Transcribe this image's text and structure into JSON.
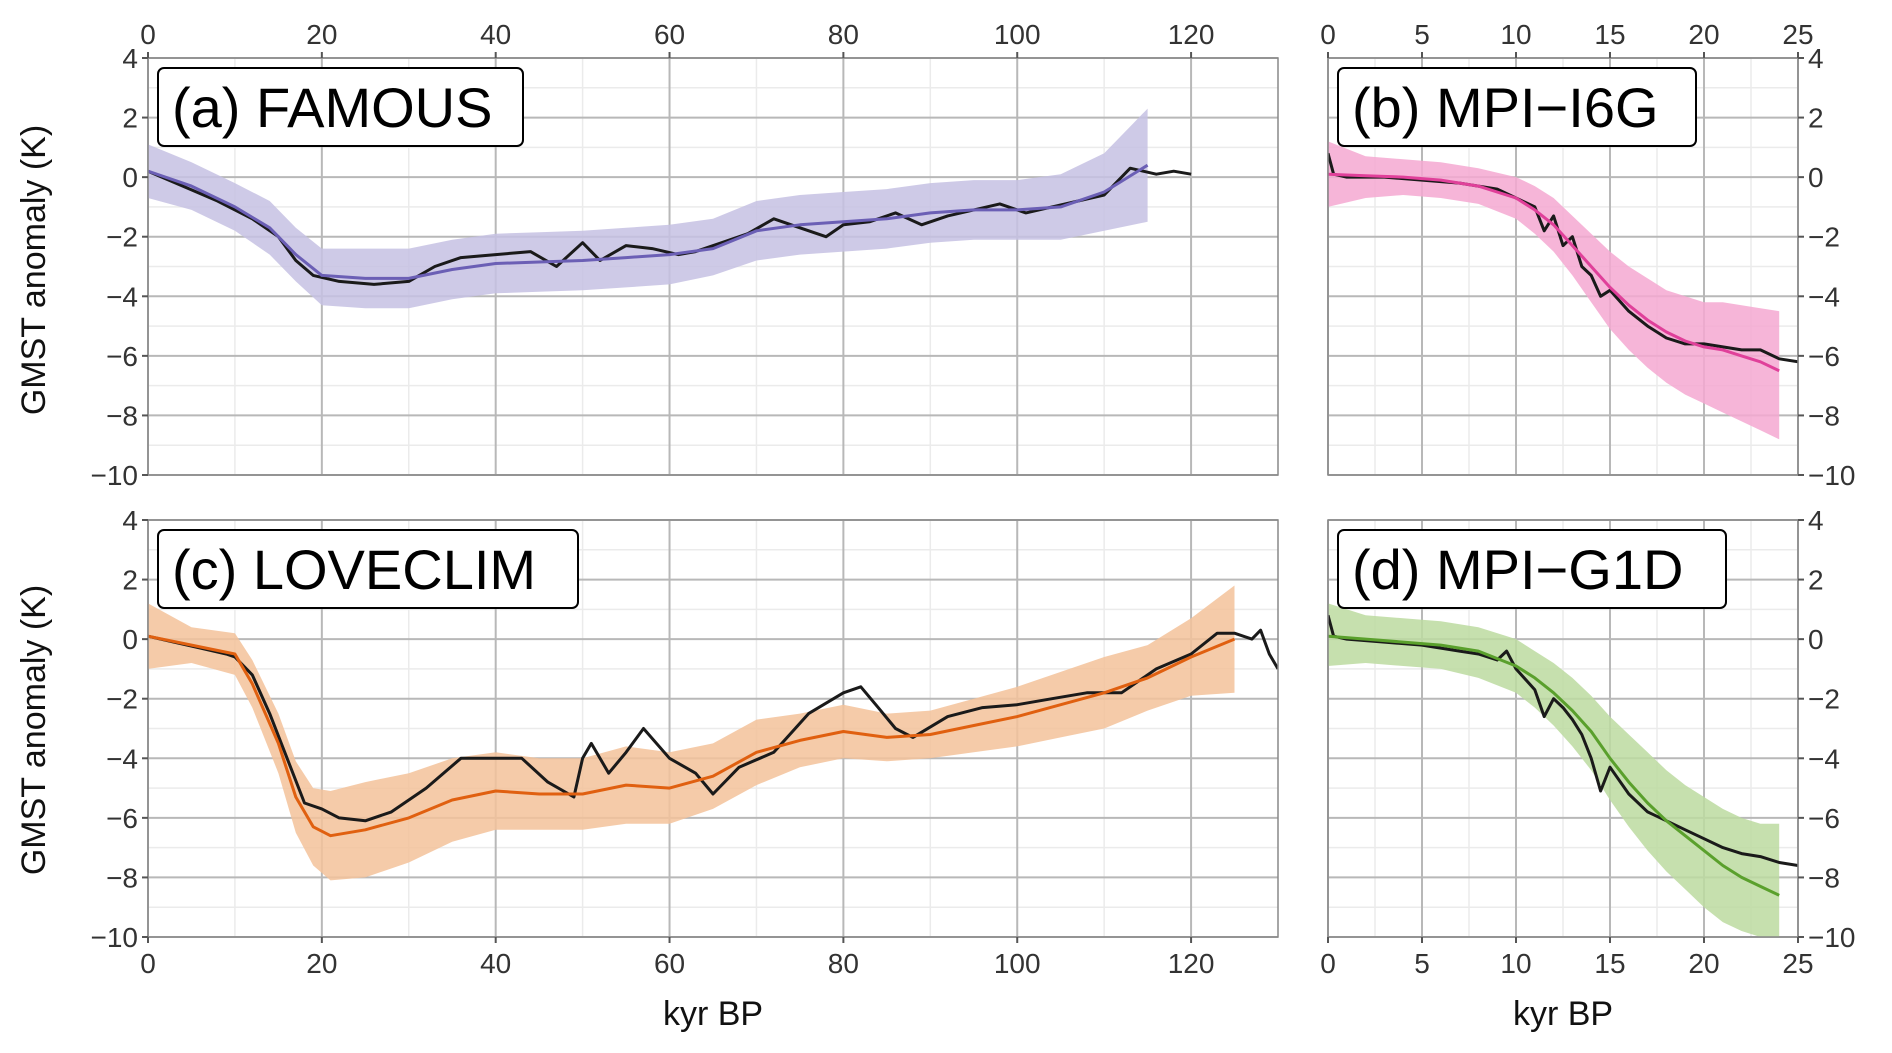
{
  "figure": {
    "ylabel": "GMST anomaly (K)",
    "xlabel": "kyr BP"
  },
  "chart_data": [
    {
      "type": "line",
      "panel": "a",
      "title": "(a) FAMOUS",
      "xlabel": "",
      "ylabel": "GMST anomaly (K)",
      "xlim": [
        0,
        130
      ],
      "ylim": [
        -10,
        4
      ],
      "x_ticks": [
        0,
        20,
        40,
        60,
        80,
        100,
        120
      ],
      "y_ticks": [
        -10,
        -8,
        -6,
        -4,
        -2,
        0,
        2,
        4
      ],
      "x_tick_position": "top",
      "y_tick_position": "left",
      "grid": true,
      "colors": {
        "mean": "#6b5fb5",
        "band": "#c5c1e3",
        "raw": "#1a1a1a"
      },
      "series": [
        {
          "role": "mean",
          "x": [
            0,
            5,
            10,
            14,
            17,
            20,
            25,
            30,
            35,
            40,
            45,
            50,
            55,
            60,
            65,
            70,
            75,
            80,
            85,
            90,
            95,
            100,
            105,
            110,
            115
          ],
          "values": [
            0.2,
            -0.3,
            -1.0,
            -1.7,
            -2.6,
            -3.3,
            -3.4,
            -3.4,
            -3.1,
            -2.9,
            -2.85,
            -2.8,
            -2.7,
            -2.6,
            -2.4,
            -1.8,
            -1.6,
            -1.5,
            -1.4,
            -1.2,
            -1.1,
            -1.1,
            -1.0,
            -0.5,
            0.4
          ]
        },
        {
          "role": "band",
          "x": [
            0,
            5,
            10,
            14,
            17,
            20,
            25,
            30,
            35,
            40,
            45,
            50,
            55,
            60,
            65,
            70,
            75,
            80,
            85,
            90,
            95,
            100,
            105,
            110,
            115
          ],
          "lower": [
            -0.7,
            -1.1,
            -1.8,
            -2.6,
            -3.5,
            -4.3,
            -4.4,
            -4.4,
            -4.1,
            -3.9,
            -3.85,
            -3.8,
            -3.7,
            -3.6,
            -3.3,
            -2.8,
            -2.6,
            -2.5,
            -2.4,
            -2.2,
            -2.1,
            -2.1,
            -2.1,
            -1.8,
            -1.5
          ],
          "upper": [
            1.1,
            0.5,
            -0.2,
            -0.8,
            -1.7,
            -2.4,
            -2.4,
            -2.4,
            -2.1,
            -1.9,
            -1.85,
            -1.8,
            -1.7,
            -1.6,
            -1.4,
            -0.8,
            -0.6,
            -0.5,
            -0.4,
            -0.2,
            -0.1,
            -0.1,
            0.1,
            0.8,
            2.3
          ]
        },
        {
          "role": "raw",
          "x": [
            0,
            4,
            8,
            12,
            15,
            17,
            19,
            22,
            26,
            30,
            33,
            36,
            40,
            44,
            47,
            50,
            52,
            55,
            58,
            61,
            63,
            66,
            69,
            72,
            75,
            78,
            80,
            83,
            86,
            89,
            92,
            95,
            98,
            101,
            104,
            107,
            110,
            113,
            116,
            118,
            120
          ],
          "values": [
            0.2,
            -0.3,
            -0.8,
            -1.4,
            -2.0,
            -2.8,
            -3.3,
            -3.5,
            -3.6,
            -3.5,
            -3.0,
            -2.7,
            -2.6,
            -2.5,
            -3.0,
            -2.2,
            -2.8,
            -2.3,
            -2.4,
            -2.6,
            -2.5,
            -2.2,
            -1.9,
            -1.4,
            -1.7,
            -2.0,
            -1.6,
            -1.5,
            -1.2,
            -1.6,
            -1.3,
            -1.1,
            -0.9,
            -1.2,
            -1.0,
            -0.8,
            -0.6,
            0.3,
            0.1,
            0.2,
            0.1
          ]
        }
      ]
    },
    {
      "type": "line",
      "panel": "b",
      "title": "(b) MPI−I6G",
      "xlabel": "",
      "ylabel": "",
      "xlim": [
        0,
        25
      ],
      "ylim": [
        -10,
        4
      ],
      "x_ticks": [
        0,
        5,
        10,
        15,
        20,
        25
      ],
      "y_ticks": [
        -10,
        -8,
        -6,
        -4,
        -2,
        0,
        2,
        4
      ],
      "x_tick_position": "top",
      "y_tick_position": "right",
      "grid": true,
      "colors": {
        "mean": "#e0409a",
        "band": "#f5a8d1",
        "raw": "#1a1a1a"
      },
      "series": [
        {
          "role": "mean",
          "x": [
            0,
            2,
            4,
            6,
            8,
            10,
            11,
            12,
            13,
            14,
            15,
            16,
            17,
            18,
            19,
            20,
            21,
            22,
            23,
            24
          ],
          "values": [
            0.1,
            0.05,
            0.0,
            -0.1,
            -0.3,
            -0.7,
            -1.1,
            -1.6,
            -2.3,
            -3.0,
            -3.7,
            -4.3,
            -4.8,
            -5.2,
            -5.5,
            -5.7,
            -5.8,
            -6.0,
            -6.2,
            -6.5
          ]
        },
        {
          "role": "band",
          "x": [
            0,
            2,
            4,
            6,
            8,
            10,
            11,
            12,
            13,
            14,
            15,
            16,
            17,
            18,
            19,
            20,
            21,
            22,
            23,
            24
          ],
          "lower": [
            -1.0,
            -0.7,
            -0.6,
            -0.7,
            -0.9,
            -1.4,
            -1.9,
            -2.5,
            -3.3,
            -4.2,
            -5.1,
            -5.8,
            -6.4,
            -6.9,
            -7.3,
            -7.6,
            -7.9,
            -8.2,
            -8.5,
            -8.8
          ],
          "upper": [
            1.2,
            0.7,
            0.6,
            0.5,
            0.3,
            0.0,
            -0.3,
            -0.7,
            -1.3,
            -1.9,
            -2.5,
            -3.0,
            -3.4,
            -3.8,
            -4.0,
            -4.2,
            -4.2,
            -4.3,
            -4.4,
            -4.5
          ]
        },
        {
          "role": "raw",
          "x": [
            0,
            0.3,
            1,
            3,
            5,
            7,
            8,
            9,
            10,
            11,
            11.5,
            12,
            12.5,
            13,
            13.5,
            14,
            14.5,
            15,
            16,
            17,
            18,
            19,
            20,
            21,
            22,
            23,
            24,
            25
          ],
          "values": [
            0.8,
            0.1,
            0.0,
            0.0,
            -0.1,
            -0.2,
            -0.3,
            -0.4,
            -0.7,
            -1.0,
            -1.8,
            -1.3,
            -2.3,
            -2.0,
            -3.0,
            -3.3,
            -4.0,
            -3.8,
            -4.5,
            -5.0,
            -5.4,
            -5.6,
            -5.6,
            -5.7,
            -5.8,
            -5.8,
            -6.1,
            -6.2
          ]
        }
      ]
    },
    {
      "type": "line",
      "panel": "c",
      "title": "(c) LOVECLIM",
      "xlabel": "kyr BP",
      "ylabel": "GMST anomaly (K)",
      "xlim": [
        0,
        130
      ],
      "ylim": [
        -10,
        4
      ],
      "x_ticks": [
        0,
        20,
        40,
        60,
        80,
        100,
        120
      ],
      "y_ticks": [
        -10,
        -8,
        -6,
        -4,
        -2,
        0,
        2,
        4
      ],
      "x_tick_position": "bottom",
      "y_tick_position": "left",
      "grid": true,
      "colors": {
        "mean": "#e06010",
        "band": "#f3c29a",
        "raw": "#1a1a1a"
      },
      "series": [
        {
          "role": "mean",
          "x": [
            0,
            5,
            10,
            12,
            15,
            17,
            19,
            21,
            25,
            30,
            35,
            40,
            45,
            50,
            55,
            60,
            65,
            70,
            75,
            80,
            85,
            90,
            95,
            100,
            105,
            110,
            115,
            120,
            125
          ],
          "values": [
            0.1,
            -0.2,
            -0.5,
            -1.5,
            -3.5,
            -5.3,
            -6.3,
            -6.6,
            -6.4,
            -6.0,
            -5.4,
            -5.1,
            -5.2,
            -5.2,
            -4.9,
            -5.0,
            -4.6,
            -3.8,
            -3.4,
            -3.1,
            -3.3,
            -3.2,
            -2.9,
            -2.6,
            -2.2,
            -1.8,
            -1.3,
            -0.6,
            0.0
          ]
        },
        {
          "role": "band",
          "x": [
            0,
            5,
            10,
            12,
            15,
            17,
            19,
            21,
            25,
            30,
            35,
            40,
            45,
            50,
            55,
            60,
            65,
            70,
            75,
            80,
            85,
            90,
            95,
            100,
            105,
            110,
            115,
            120,
            125
          ],
          "lower": [
            -1.0,
            -0.8,
            -1.2,
            -2.3,
            -4.5,
            -6.5,
            -7.6,
            -8.1,
            -8.0,
            -7.5,
            -6.8,
            -6.4,
            -6.4,
            -6.4,
            -6.2,
            -6.2,
            -5.7,
            -4.9,
            -4.3,
            -4.0,
            -4.1,
            -4.0,
            -3.8,
            -3.6,
            -3.3,
            -3.0,
            -2.4,
            -1.9,
            -1.8
          ]
        },
        {
          "role": "raw",
          "x": [
            0,
            3,
            6,
            9,
            10,
            12,
            14,
            16,
            18,
            20,
            22,
            25,
            28,
            32,
            36,
            39,
            43,
            46,
            49,
            50,
            51,
            53,
            55,
            57,
            60,
            63,
            65,
            68,
            72,
            76,
            80,
            82,
            84,
            86,
            88,
            92,
            96,
            100,
            104,
            108,
            112,
            116,
            120,
            123,
            125,
            127,
            128,
            129,
            130
          ],
          "values": [
            0.1,
            -0.1,
            -0.3,
            -0.5,
            -0.6,
            -1.2,
            -2.5,
            -4.0,
            -5.5,
            -5.7,
            -6.0,
            -6.1,
            -5.8,
            -5.0,
            -4.0,
            -4.0,
            -4.0,
            -4.8,
            -5.3,
            -4.0,
            -3.5,
            -4.5,
            -3.8,
            -3.0,
            -4.0,
            -4.5,
            -5.2,
            -4.3,
            -3.8,
            -2.5,
            -1.8,
            -1.6,
            -2.3,
            -3.0,
            -3.3,
            -2.6,
            -2.3,
            -2.2,
            -2.0,
            -1.8,
            -1.8,
            -1.0,
            -0.5,
            0.2,
            0.2,
            0.0,
            0.3,
            -0.5,
            -1.0
          ]
        }
      ]
    },
    {
      "type": "line",
      "panel": "d",
      "title": "(d) MPI−G1D",
      "xlabel": "kyr BP",
      "ylabel": "",
      "xlim": [
        0,
        25
      ],
      "ylim": [
        -10,
        4
      ],
      "x_ticks": [
        0,
        5,
        10,
        15,
        20,
        25
      ],
      "y_ticks": [
        -10,
        -8,
        -6,
        -4,
        -2,
        0,
        2,
        4
      ],
      "x_tick_position": "bottom",
      "y_tick_position": "right",
      "grid": true,
      "colors": {
        "mean": "#5aa02c",
        "band": "#bcdba0",
        "raw": "#1a1a1a"
      },
      "series": [
        {
          "role": "mean",
          "x": [
            0,
            2,
            4,
            6,
            8,
            10,
            11,
            12,
            13,
            14,
            15,
            16,
            17,
            18,
            19,
            20,
            21,
            22,
            23,
            24
          ],
          "values": [
            0.1,
            0.0,
            -0.1,
            -0.2,
            -0.4,
            -0.9,
            -1.3,
            -1.8,
            -2.4,
            -3.1,
            -4.0,
            -4.8,
            -5.5,
            -6.1,
            -6.6,
            -7.1,
            -7.6,
            -8.0,
            -8.3,
            -8.6
          ]
        },
        {
          "role": "band",
          "x": [
            0,
            2,
            4,
            6,
            8,
            10,
            11,
            12,
            13,
            14,
            15,
            16,
            17,
            18,
            19,
            20,
            21,
            22,
            23,
            24
          ],
          "lower": [
            -0.9,
            -0.8,
            -0.9,
            -1.0,
            -1.3,
            -1.8,
            -2.3,
            -2.9,
            -3.6,
            -4.4,
            -5.4,
            -6.3,
            -7.1,
            -7.8,
            -8.4,
            -9.0,
            -9.5,
            -9.8,
            -10.0,
            -10.0
          ],
          "upper": [
            1.2,
            0.8,
            0.7,
            0.6,
            0.4,
            0.0,
            -0.4,
            -0.8,
            -1.3,
            -1.9,
            -2.6,
            -3.2,
            -3.8,
            -4.4,
            -4.9,
            -5.3,
            -5.7,
            -6.0,
            -6.2,
            -6.2
          ]
        },
        {
          "role": "raw",
          "x": [
            0,
            0.3,
            1,
            3,
            5,
            7,
            8,
            9,
            9.5,
            10,
            11,
            11.5,
            12,
            12.5,
            13,
            13.5,
            14,
            14.5,
            15,
            16,
            17,
            18,
            19,
            20,
            21,
            22,
            23,
            24,
            25
          ],
          "values": [
            0.8,
            0.1,
            0.0,
            -0.1,
            -0.2,
            -0.4,
            -0.5,
            -0.7,
            -0.4,
            -1.0,
            -1.7,
            -2.6,
            -2.0,
            -2.3,
            -2.7,
            -3.2,
            -4.0,
            -5.1,
            -4.3,
            -5.2,
            -5.8,
            -6.1,
            -6.4,
            -6.7,
            -7.0,
            -7.2,
            -7.3,
            -7.5,
            -7.6
          ]
        }
      ]
    }
  ]
}
